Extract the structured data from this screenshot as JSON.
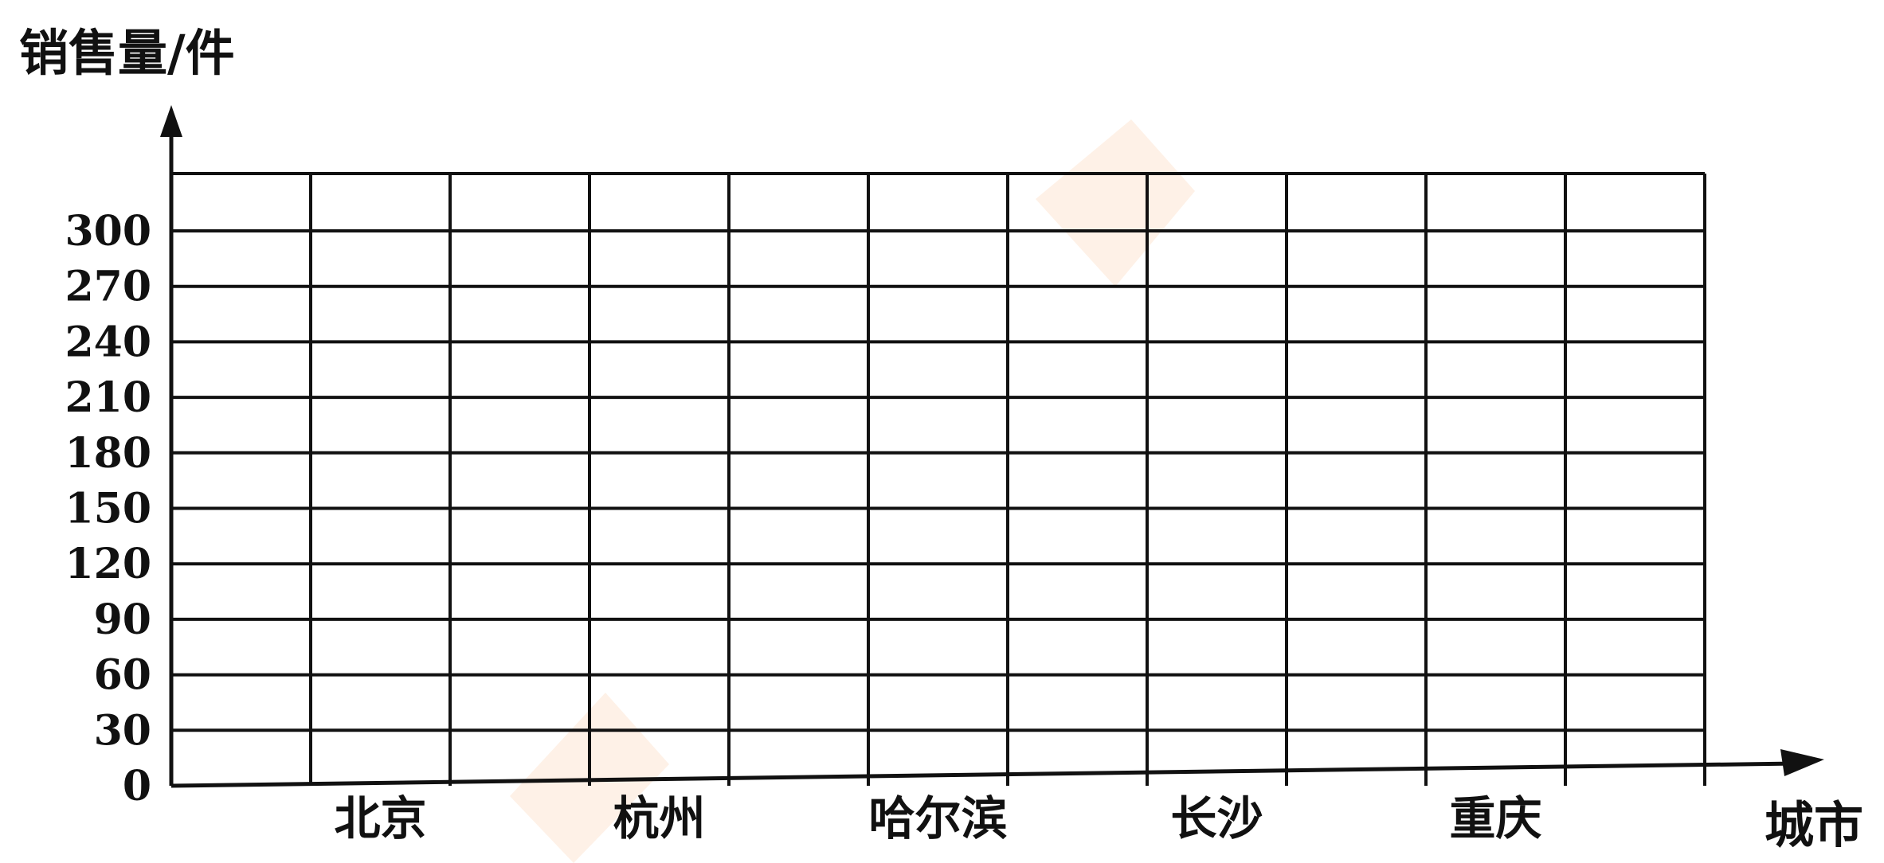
{
  "chart_data": {
    "type": "bar",
    "title": "",
    "ylabel": "销售量/件",
    "xlabel": "城市",
    "categories": [
      "北京",
      "杭州",
      "哈尔滨",
      "长沙",
      "重庆"
    ],
    "series": [],
    "ylim": [
      0,
      300
    ],
    "yticks": [
      0,
      30,
      60,
      90,
      120,
      150,
      180,
      210,
      240,
      270,
      300
    ],
    "grid": true,
    "note": ""
  },
  "colors": {
    "grid": "#111111",
    "text": "#111111",
    "watermark": "#f7b27a"
  }
}
